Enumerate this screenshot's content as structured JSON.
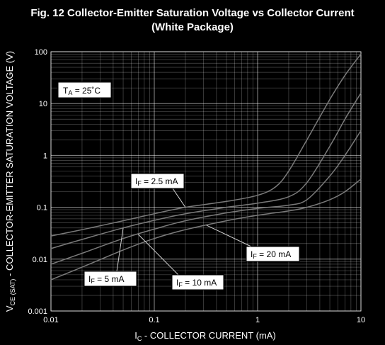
{
  "title": {
    "line1": "Fig. 12  Collector-Emitter Saturation Voltage vs Collector Current",
    "line2": "(White Package)"
  },
  "colors": {
    "background": "#000000",
    "grid": "#ffffff",
    "curve": "#7a7a7a",
    "annotation_box": "#ffffff"
  },
  "chart_data": {
    "type": "line",
    "title": "Fig. 12  Collector-Emitter Saturation Voltage vs Collector Current (White Package)",
    "xlabel": "I_C - COLLECTOR CURRENT (mA)",
    "ylabel": "V_CE (SAT) - COLLECTOR-EMITTER SATURATION VOLTAGE (V)",
    "xscale": "log",
    "yscale": "log",
    "xlim": [
      0.01,
      10
    ],
    "ylim": [
      0.001,
      100
    ],
    "grid": true,
    "x_ticks": [
      "0.01",
      "0.1",
      "1",
      "10"
    ],
    "y_ticks": [
      "0.001",
      "0.01",
      "0.1",
      "1",
      "10",
      "100"
    ],
    "x_tick_values": [
      0.01,
      0.1,
      1,
      10
    ],
    "y_tick_values": [
      0.001,
      0.01,
      0.1,
      1,
      10,
      100
    ],
    "condition": "T_A = 25°C",
    "series": [
      {
        "name": "I_F = 2.5 mA",
        "x": [
          0.01,
          0.02,
          0.05,
          0.1,
          0.2,
          0.5,
          1,
          1.5,
          2,
          3,
          5,
          7,
          10
        ],
        "y": [
          0.028,
          0.037,
          0.055,
          0.075,
          0.1,
          0.13,
          0.17,
          0.25,
          0.5,
          2,
          12,
          35,
          90
        ]
      },
      {
        "name": "I_F = 5 mA",
        "x": [
          0.01,
          0.02,
          0.05,
          0.1,
          0.2,
          0.5,
          1,
          2,
          3,
          5,
          7,
          10
        ],
        "y": [
          0.016,
          0.024,
          0.04,
          0.056,
          0.075,
          0.1,
          0.12,
          0.16,
          0.3,
          1.5,
          5,
          16
        ]
      },
      {
        "name": "I_F = 10 mA",
        "x": [
          0.01,
          0.02,
          0.05,
          0.1,
          0.2,
          0.5,
          1,
          2,
          3,
          5,
          7,
          10
        ],
        "y": [
          0.008,
          0.013,
          0.025,
          0.038,
          0.055,
          0.078,
          0.095,
          0.11,
          0.14,
          0.4,
          1,
          3
        ]
      },
      {
        "name": "I_F = 20 mA",
        "x": [
          0.01,
          0.02,
          0.05,
          0.1,
          0.2,
          0.5,
          1,
          2,
          3,
          5,
          7,
          10
        ],
        "y": [
          0.004,
          0.007,
          0.015,
          0.025,
          0.037,
          0.055,
          0.07,
          0.085,
          0.1,
          0.14,
          0.2,
          0.35
        ]
      }
    ],
    "annotations": {
      "ta": {
        "text_main": "T",
        "text_sub": "A",
        "text_rest": " = 25˚C"
      },
      "labels": [
        {
          "main": "I",
          "sub": "F",
          "rest": " = 2.5 mA",
          "point": [
            0.2,
            0.1
          ]
        },
        {
          "main": "I",
          "sub": "F",
          "rest": " = 5 mA",
          "point": [
            0.05,
            0.04
          ]
        },
        {
          "main": "I",
          "sub": "F",
          "rest": " = 10 mA",
          "point": [
            0.07,
            0.03
          ]
        },
        {
          "main": "I",
          "sub": "F",
          "rest": " = 20 mA",
          "point": [
            0.32,
            0.045
          ]
        }
      ]
    },
    "ylabel_parts": {
      "main": "V",
      "sub": "CE (SAT)",
      "rest": " - COLLECTOR-EMITTER SATURATION VOLTAGE (V)"
    },
    "xlabel_parts": {
      "main": "I",
      "sub": "C",
      "rest": " - COLLECTOR CURRENT (mA)"
    }
  }
}
